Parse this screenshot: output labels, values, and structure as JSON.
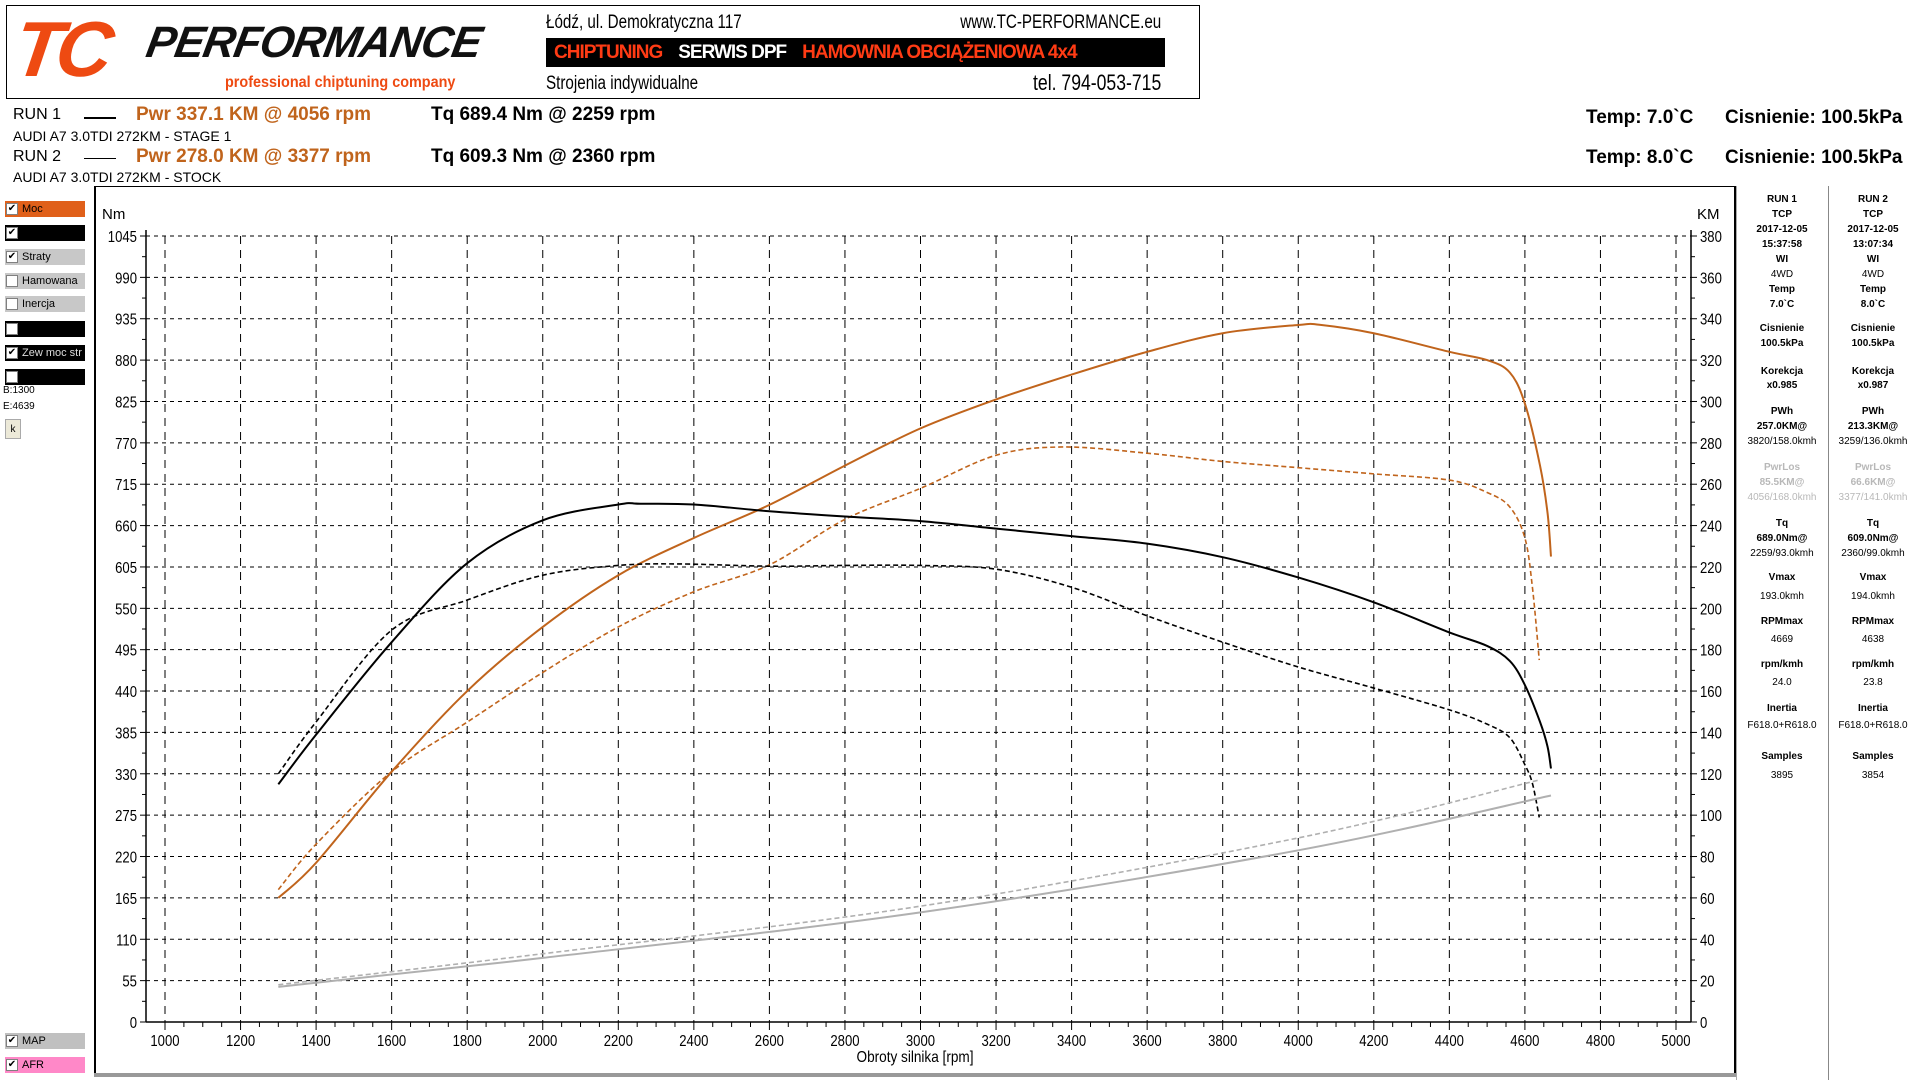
{
  "header": {
    "logo_tc": "TC",
    "logo_performance": "PERFORMANCE",
    "logo_sub": "professional chiptuning company",
    "address": "Łódź, ul. Demokratyczna 117",
    "website": "www.TC-PERFORMANCE.eu",
    "banner": [
      "CHIPTUNING",
      "SERWIS DPF",
      "HAMOWNIA OBCIĄŻENIOWA 4x4"
    ],
    "tagline": "Strojenia indywidualne",
    "phone": "tel. 794-053-715"
  },
  "runs": [
    {
      "label": "RUN 1",
      "pwr": "Pwr  337.1 KM @ 4056 rpm",
      "tq": "Tq 689.4 Nm @ 2259 rpm",
      "desc": "AUDI A7 3.0TDI 272KM - STAGE 1",
      "temp": "Temp: 7.0`C",
      "pressure": "Cisnienie: 100.5kPa"
    },
    {
      "label": "RUN 2",
      "pwr": "Pwr  278.0 KM @ 3377 rpm",
      "tq": "Tq 609.3 Nm @ 2360 rpm",
      "desc": "AUDI A7 3.0TDI 272KM - STOCK",
      "temp": "Temp: 8.0`C",
      "pressure": "Cisnienie: 100.5kPa"
    }
  ],
  "left_panel": {
    "checkboxes": [
      {
        "label": "Moc",
        "checked": true,
        "color": "#e0601a"
      },
      {
        "label": "",
        "checked": true,
        "color": "#000000"
      },
      {
        "label": "Straty",
        "checked": true,
        "color": "#c8c8c8"
      },
      {
        "label": "Hamowana",
        "checked": false,
        "color": "#c8c8c8"
      },
      {
        "label": "Inercja",
        "checked": false,
        "color": "#c8c8c8"
      },
      {
        "label": "",
        "checked": false,
        "color": "#000000"
      },
      {
        "label": "Zew moc str",
        "checked": true,
        "color": "#000000"
      },
      {
        "label": "",
        "checked": false,
        "color": "#000000"
      }
    ],
    "begin": "B:1300",
    "end": "E:4639",
    "k_button": "k",
    "bottom_checkboxes": [
      {
        "label": "MAP",
        "checked": true,
        "color": "#c0c0c0"
      },
      {
        "label": "AFR",
        "checked": true,
        "color": "#ff88c8"
      }
    ]
  },
  "right_panel": {
    "runs": [
      {
        "rows": [
          "RUN 1",
          "TCP",
          "2017-12-05",
          "15:37:58",
          "WI",
          "4WD",
          "Temp",
          "7.0`C",
          "Cisnienie",
          "100.5kPa",
          "Korekcja",
          "x0.985",
          "PWh",
          "257.0KM@",
          "3820/158.0kmh",
          "PwrLos",
          "85.5KM@",
          "4056/168.0kmh",
          "Tq",
          "689.0Nm@",
          "2259/93.0kmh",
          "Vmax",
          "193.0kmh",
          "RPMmax",
          "4669",
          "rpm/kmh",
          "24.0",
          "Inertia",
          "F618.0+R618.0",
          "Samples",
          "3895"
        ]
      },
      {
        "rows": [
          "RUN 2",
          "TCP",
          "2017-12-05",
          "13:07:34",
          "WI",
          "4WD",
          "Temp",
          "8.0`C",
          "Cisnienie",
          "100.5kPa",
          "Korekcja",
          "x0.987",
          "PWh",
          "213.3KM@",
          "3259/136.0kmh",
          "PwrLos",
          "66.6KM@",
          "3377/141.0kmh",
          "Tq",
          "609.0Nm@",
          "2360/99.0kmh",
          "Vmax",
          "194.0kmh",
          "RPMmax",
          "4638",
          "rpm/kmh",
          "23.8",
          "Inertia",
          "F618.0+R618.0",
          "Samples",
          "3854"
        ]
      }
    ]
  },
  "chart_data": {
    "type": "line",
    "xlabel": "Obroty silnika [rpm]",
    "ylabel_left": "Nm",
    "ylabel_right": "KM",
    "xlim": [
      1000,
      5000
    ],
    "ylim_left": [
      0,
      1045
    ],
    "ylim_right": [
      0,
      380
    ],
    "x_ticks": [
      1000,
      1200,
      1400,
      1600,
      1800,
      2000,
      2200,
      2400,
      2600,
      2800,
      3000,
      3200,
      3400,
      3600,
      3800,
      4000,
      4200,
      4400,
      4600,
      4800,
      5000
    ],
    "y_ticks_left": [
      0,
      55,
      110,
      165,
      220,
      275,
      330,
      385,
      440,
      495,
      550,
      605,
      660,
      715,
      770,
      825,
      880,
      935,
      990,
      1045
    ],
    "y_ticks_right": [
      0,
      20,
      40,
      60,
      80,
      100,
      120,
      140,
      160,
      180,
      200,
      220,
      240,
      260,
      280,
      300,
      320,
      340,
      360,
      380
    ],
    "grid": true,
    "colors": {
      "power": "#c0641c",
      "torque": "#000000",
      "losses": "#b0b0b0"
    },
    "series": [
      {
        "run": "RUN 1",
        "kind": "power",
        "axis": "right",
        "style": "solid",
        "x": [
          1300,
          1400,
          1600,
          1800,
          2000,
          2200,
          2400,
          2600,
          2800,
          3000,
          3200,
          3400,
          3600,
          3800,
          4000,
          4056,
          4200,
          4400,
          4500,
          4560,
          4600,
          4640,
          4660,
          4669
        ],
        "y": [
          60,
          77,
          121,
          160,
          191,
          216,
          234,
          250,
          269,
          287,
          301,
          313,
          324,
          333,
          337,
          337.1,
          333,
          324,
          320,
          314,
          299,
          269,
          246,
          225
        ]
      },
      {
        "run": "RUN 2",
        "kind": "power",
        "axis": "right",
        "style": "dashed",
        "x": [
          1300,
          1400,
          1600,
          1800,
          2000,
          2200,
          2400,
          2600,
          2800,
          3000,
          3200,
          3377,
          3600,
          3800,
          4000,
          4200,
          4400,
          4500,
          4560,
          4600,
          4620,
          4638
        ],
        "y": [
          64,
          86,
          121,
          145,
          169,
          191,
          208,
          221,
          243,
          258,
          274,
          278,
          275,
          271,
          268,
          265,
          262,
          256,
          249,
          234,
          210,
          175
        ]
      },
      {
        "run": "RUN 1",
        "kind": "torque",
        "axis": "left",
        "style": "solid",
        "x": [
          1300,
          1400,
          1600,
          1800,
          2000,
          2200,
          2259,
          2400,
          2600,
          2800,
          3000,
          3200,
          3400,
          3600,
          3800,
          4000,
          4200,
          4400,
          4500,
          4560,
          4600,
          4640,
          4660,
          4669
        ],
        "y": [
          316,
          382,
          505,
          610,
          667,
          688,
          689,
          688,
          679,
          672,
          666,
          656,
          646,
          636,
          618,
          591,
          558,
          518,
          500,
          480,
          448,
          399,
          366,
          337
        ]
      },
      {
        "run": "RUN 2",
        "kind": "torque",
        "axis": "left",
        "style": "dashed",
        "x": [
          1300,
          1400,
          1600,
          1800,
          2000,
          2200,
          2360,
          2600,
          2800,
          3000,
          3200,
          3400,
          3600,
          3800,
          4000,
          4200,
          4400,
          4500,
          4560,
          4600,
          4620,
          4638
        ],
        "y": [
          330,
          399,
          521,
          561,
          594,
          607,
          609,
          606,
          607,
          607,
          602,
          578,
          540,
          505,
          472,
          444,
          415,
          396,
          378,
          342,
          317,
          272
        ]
      },
      {
        "run": "RUN 1",
        "kind": "losses",
        "axis": "right",
        "style": "solid",
        "x": [
          1300,
          2000,
          3000,
          4000,
          4669
        ],
        "y": [
          17,
          31,
          53,
          83,
          109.5
        ]
      },
      {
        "run": "RUN 2",
        "kind": "losses",
        "axis": "right",
        "style": "dashed",
        "x": [
          1300,
          2000,
          3000,
          4000,
          4638
        ],
        "y": [
          18,
          33,
          56,
          89,
          117
        ]
      }
    ]
  }
}
